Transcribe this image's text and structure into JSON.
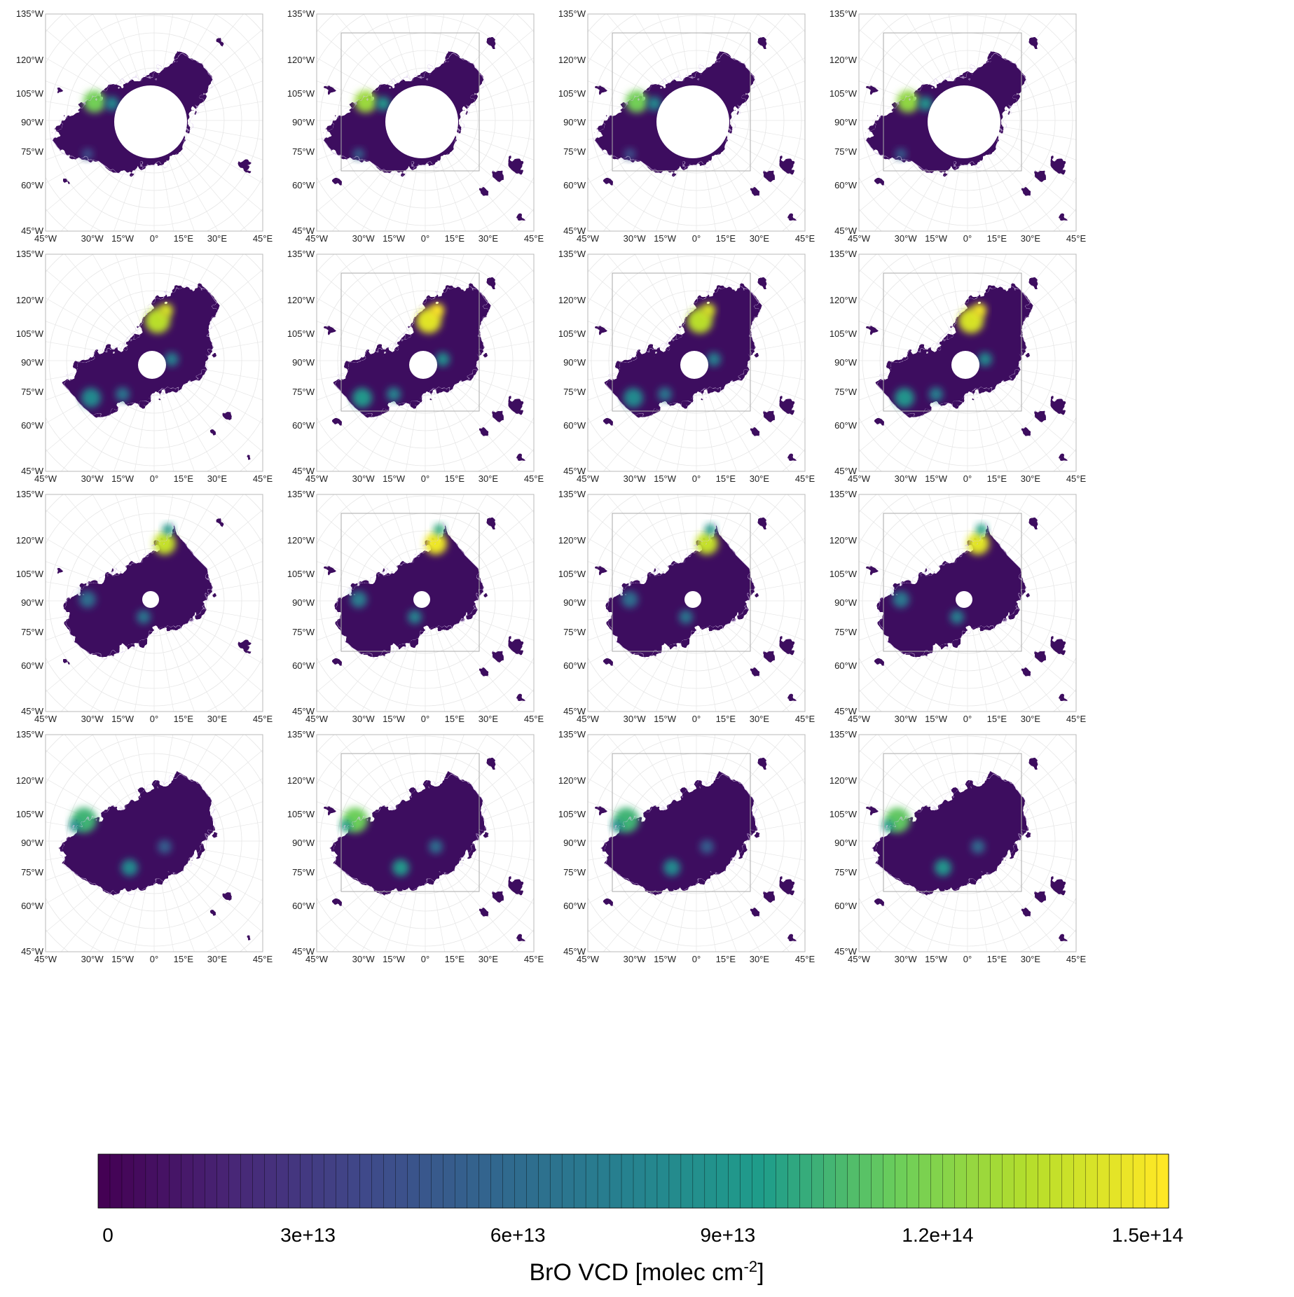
{
  "panels": {
    "rows": 4,
    "cols": 4,
    "x_ticks": [
      "45°W",
      "30°W",
      "15°W",
      "0°",
      "15°E",
      "30°E",
      "45°E"
    ],
    "y_ticks": [
      "135°W",
      "120°W",
      "105°W",
      "90°W",
      "75°W",
      "60°W",
      "45°W"
    ],
    "inner_box_columns": [
      1,
      2,
      3
    ]
  },
  "colorbar": {
    "tick_labels": [
      "0",
      "3e+13",
      "6e+13",
      "9e+13",
      "1.2e+14",
      "1.5e+14"
    ],
    "tick_values": [
      0,
      30000000000000.0,
      60000000000000.0,
      90000000000000.0,
      120000000000000.0,
      150000000000000.0
    ],
    "min": 0,
    "max": 153000000000000.0,
    "n_bins": 90,
    "title_main": "BrO VCD [molec cm",
    "title_sup": "-2",
    "title_end": "]"
  },
  "colors": {
    "viridis_stops": [
      "#440154",
      "#482777",
      "#3f4a8a",
      "#31688e",
      "#26838f",
      "#1f9d8a",
      "#6cce5a",
      "#b6de2b",
      "#fee825"
    ],
    "data_base": "#3e0a5e",
    "coast": "#d8c8ea",
    "grid": "#e6e6e6"
  }
}
